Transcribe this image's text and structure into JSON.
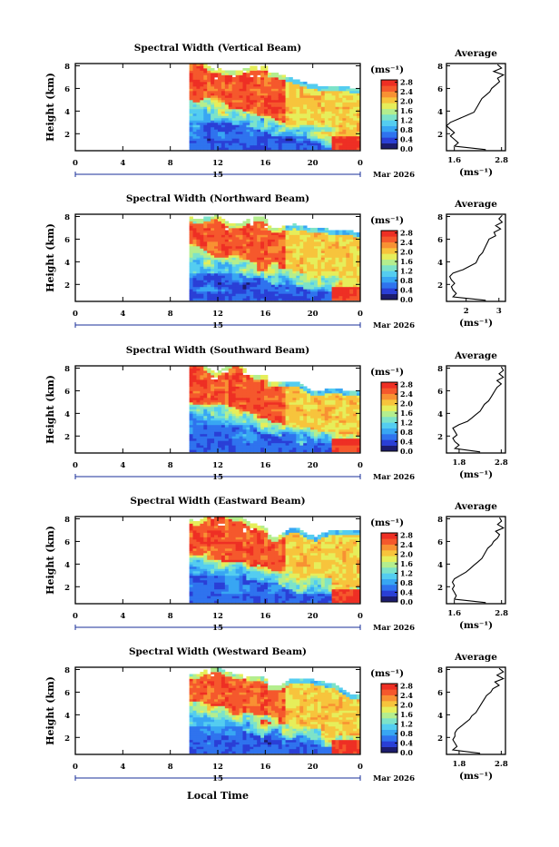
{
  "figure": {
    "xlabel": "Local Time",
    "date_label": "Mar 2026",
    "day_label": "15",
    "units": "(ms⁻¹)",
    "avg_title": "Average",
    "ylabel": "Height (km)"
  },
  "chart_data": [
    {
      "type": "heatmap",
      "title": "Spectral Width (Vertical Beam)",
      "ylabel": "Height (km)",
      "xlabel": "Local Time",
      "x_ticks": [
        "0",
        "4",
        "8",
        "12",
        "16",
        "20",
        "0"
      ],
      "xlim": [
        0,
        24
      ],
      "y_ticks": [
        "2",
        "4",
        "6",
        "8"
      ],
      "ylim": [
        0.5,
        8.2
      ],
      "colorbar": {
        "label": "(ms⁻¹)",
        "ticks": [
          "0.0",
          "0.4",
          "0.8",
          "1.2",
          "1.6",
          "2.0",
          "2.4",
          "2.8"
        ],
        "range": [
          0.0,
          2.9
        ]
      },
      "data_start_hour": 9.6,
      "average_profile": {
        "title": "Average",
        "xlabel": "(ms⁻¹)",
        "x_ticks": [
          "1.6",
          "2.8"
        ],
        "xlim": [
          1.4,
          2.9
        ],
        "ylim": [
          0.5,
          8.2
        ],
        "heights": [
          0.6,
          0.9,
          1.2,
          1.5,
          1.8,
          2.1,
          2.4,
          2.7,
          3.0,
          3.3,
          3.6,
          3.9,
          4.2,
          4.5,
          4.8,
          5.1,
          5.4,
          5.7,
          6.0,
          6.3,
          6.6,
          6.9,
          7.2,
          7.5,
          7.8,
          8.1
        ],
        "values": [
          2.4,
          1.6,
          1.7,
          1.6,
          1.5,
          1.6,
          1.5,
          1.4,
          1.5,
          1.7,
          1.9,
          2.1,
          2.15,
          2.2,
          2.25,
          2.3,
          2.4,
          2.5,
          2.55,
          2.65,
          2.75,
          2.7,
          2.85,
          2.6,
          2.8,
          2.7
        ]
      }
    },
    {
      "type": "heatmap",
      "title": "Spectral Width (Northward Beam)",
      "ylabel": "Height (km)",
      "xlabel": "Local Time",
      "x_ticks": [
        "0",
        "4",
        "8",
        "12",
        "16",
        "20",
        "0"
      ],
      "xlim": [
        0,
        24
      ],
      "y_ticks": [
        "2",
        "4",
        "6",
        "8"
      ],
      "ylim": [
        0.5,
        8.2
      ],
      "colorbar": {
        "label": "(ms⁻¹)",
        "ticks": [
          "0.0",
          "0.4",
          "0.8",
          "1.2",
          "1.6",
          "2.0",
          "2.4",
          "2.8"
        ],
        "range": [
          0.0,
          2.9
        ]
      },
      "data_start_hour": 9.6,
      "average_profile": {
        "title": "Average",
        "xlabel": "(ms⁻¹)",
        "x_ticks": [
          "2",
          "3"
        ],
        "xlim": [
          1.4,
          3.2
        ],
        "ylim": [
          0.5,
          8.2
        ],
        "heights": [
          0.6,
          0.9,
          1.2,
          1.5,
          1.8,
          2.1,
          2.4,
          2.7,
          3.0,
          3.3,
          3.6,
          3.9,
          4.2,
          4.5,
          4.8,
          5.1,
          5.4,
          5.7,
          6.0,
          6.3,
          6.6,
          6.9,
          7.2,
          7.5,
          7.8,
          8.1
        ],
        "values": [
          2.6,
          1.6,
          1.7,
          1.6,
          1.55,
          1.65,
          1.55,
          1.5,
          1.6,
          1.9,
          2.1,
          2.3,
          2.35,
          2.4,
          2.5,
          2.55,
          2.6,
          2.65,
          2.7,
          2.9,
          2.85,
          3.05,
          2.9,
          3.1,
          3.0,
          3.1
        ]
      }
    },
    {
      "type": "heatmap",
      "title": "Spectral Width (Southward Beam)",
      "ylabel": "Height (km)",
      "xlabel": "Local Time",
      "x_ticks": [
        "0",
        "4",
        "8",
        "12",
        "16",
        "20",
        "0"
      ],
      "xlim": [
        0,
        24
      ],
      "y_ticks": [
        "2",
        "4",
        "6",
        "8"
      ],
      "ylim": [
        0.5,
        8.2
      ],
      "colorbar": {
        "label": "(ms⁻¹)",
        "ticks": [
          "0.0",
          "0.4",
          "0.8",
          "1.2",
          "1.6",
          "2.0",
          "2.4",
          "2.8"
        ],
        "range": [
          0.0,
          2.9
        ]
      },
      "data_start_hour": 9.6,
      "average_profile": {
        "title": "Average",
        "xlabel": "(ms⁻¹)",
        "x_ticks": [
          "1.8",
          "2.8"
        ],
        "xlim": [
          1.5,
          2.9
        ],
        "ylim": [
          0.5,
          8.2
        ],
        "heights": [
          0.6,
          0.9,
          1.2,
          1.5,
          1.8,
          2.1,
          2.4,
          2.7,
          3.0,
          3.3,
          3.6,
          3.9,
          4.2,
          4.5,
          4.8,
          5.1,
          5.4,
          5.7,
          6.0,
          6.3,
          6.6,
          6.9,
          7.2,
          7.5,
          7.8,
          8.1
        ],
        "values": [
          2.3,
          1.7,
          1.8,
          1.7,
          1.65,
          1.75,
          1.7,
          1.65,
          1.8,
          2.0,
          2.1,
          2.2,
          2.3,
          2.35,
          2.4,
          2.5,
          2.55,
          2.6,
          2.65,
          2.7,
          2.8,
          2.7,
          2.85,
          2.75,
          2.85,
          2.8
        ]
      }
    },
    {
      "type": "heatmap",
      "title": "Spectral Width (Eastward Beam)",
      "ylabel": "Height (km)",
      "xlabel": "Local Time",
      "x_ticks": [
        "0",
        "4",
        "8",
        "12",
        "16",
        "20",
        "0"
      ],
      "xlim": [
        0,
        24
      ],
      "y_ticks": [
        "2",
        "4",
        "6",
        "8"
      ],
      "ylim": [
        0.5,
        8.2
      ],
      "colorbar": {
        "label": "(ms⁻¹)",
        "ticks": [
          "0.0",
          "0.4",
          "0.8",
          "1.2",
          "1.6",
          "2.0",
          "2.4",
          "2.8"
        ],
        "range": [
          0.0,
          2.9
        ]
      },
      "data_start_hour": 9.6,
      "average_profile": {
        "title": "Average",
        "xlabel": "(ms⁻¹)",
        "x_ticks": [
          "1.6",
          "2.8"
        ],
        "xlim": [
          1.4,
          2.9
        ],
        "ylim": [
          0.5,
          8.2
        ],
        "heights": [
          0.6,
          0.9,
          1.2,
          1.5,
          1.8,
          2.1,
          2.4,
          2.7,
          3.0,
          3.3,
          3.6,
          3.9,
          4.2,
          4.5,
          4.8,
          5.1,
          5.4,
          5.7,
          6.0,
          6.3,
          6.6,
          6.9,
          7.2,
          7.5,
          7.8,
          8.1
        ],
        "values": [
          2.4,
          1.6,
          1.65,
          1.6,
          1.55,
          1.6,
          1.55,
          1.6,
          1.75,
          1.9,
          2.0,
          2.1,
          2.2,
          2.3,
          2.35,
          2.4,
          2.45,
          2.55,
          2.6,
          2.7,
          2.75,
          2.65,
          2.85,
          2.7,
          2.8,
          2.75
        ]
      }
    },
    {
      "type": "heatmap",
      "title": "Spectral Width (Westward Beam)",
      "ylabel": "Height (km)",
      "xlabel": "Local Time",
      "x_ticks": [
        "0",
        "4",
        "8",
        "12",
        "16",
        "20",
        "0"
      ],
      "xlim": [
        0,
        24
      ],
      "y_ticks": [
        "2",
        "4",
        "6",
        "8"
      ],
      "ylim": [
        0.5,
        8.2
      ],
      "colorbar": {
        "label": "(ms⁻¹)",
        "ticks": [
          "0.0",
          "0.4",
          "0.8",
          "1.2",
          "1.6",
          "2.0",
          "2.4",
          "2.8"
        ],
        "range": [
          0.0,
          2.9
        ]
      },
      "data_start_hour": 9.6,
      "average_profile": {
        "title": "Average",
        "xlabel": "(ms⁻¹)",
        "x_ticks": [
          "1.8",
          "2.8"
        ],
        "xlim": [
          1.5,
          2.9
        ],
        "ylim": [
          0.5,
          8.2
        ],
        "heights": [
          0.6,
          0.9,
          1.2,
          1.5,
          1.8,
          2.1,
          2.4,
          2.7,
          3.0,
          3.3,
          3.6,
          3.9,
          4.2,
          4.5,
          4.8,
          5.1,
          5.4,
          5.7,
          6.0,
          6.3,
          6.6,
          6.9,
          7.2,
          7.5,
          7.8,
          8.1
        ],
        "values": [
          2.3,
          1.65,
          1.75,
          1.7,
          1.65,
          1.7,
          1.7,
          1.75,
          1.85,
          1.95,
          2.05,
          2.1,
          2.2,
          2.25,
          2.3,
          2.35,
          2.4,
          2.45,
          2.55,
          2.6,
          2.75,
          2.65,
          2.85,
          2.7,
          2.85,
          2.75
        ]
      }
    }
  ],
  "colormap": [
    "#1c1c6e",
    "#2a3fd6",
    "#2f73ee",
    "#38a6f3",
    "#54cdf0",
    "#7de3c9",
    "#b4ee8e",
    "#e6ee5a",
    "#f7c43c",
    "#f89133",
    "#f5582c",
    "#ee2f24"
  ]
}
